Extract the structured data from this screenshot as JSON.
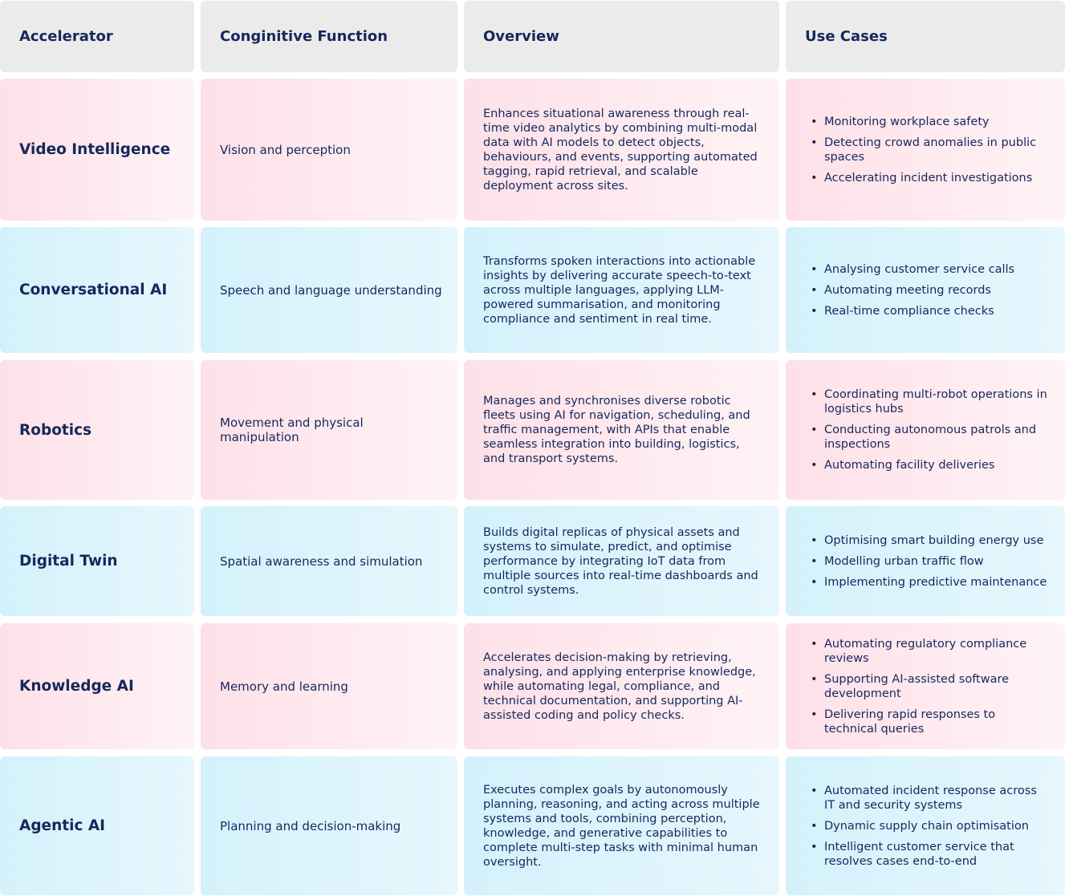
{
  "headers": {
    "accelerator": "Accelerator",
    "function": "Conginitive Function",
    "overview": "Overview",
    "use_cases": "Use Cases"
  },
  "rows": [
    {
      "accelerator": "Video Intelligence",
      "function": "Vision and perception",
      "overview": "Enhances situational awareness through real-time video analytics by combining multi-modal data with AI models to detect objects, behaviours, and events, supporting automated tagging, rapid retrieval, and scalable deployment across sites.",
      "use_cases": [
        "Monitoring workplace safety",
        "Detecting crowd anomalies in public spaces",
        "Accelerating incident investigations"
      ]
    },
    {
      "accelerator": "Conversational AI",
      "function": "Speech and language understanding",
      "overview": "Transforms spoken interactions into actionable insights by delivering accurate speech-to-text across multiple languages, applying LLM-powered summarisation, and monitoring compliance and sentiment in real time.",
      "use_cases": [
        "Analysing customer service calls",
        "Automating meeting records",
        "Real-time compliance checks"
      ]
    },
    {
      "accelerator": "Robotics",
      "function": "Movement and physical manipulation",
      "overview": "Manages and synchronises diverse robotic fleets using AI for navigation, scheduling, and traffic management, with APIs that enable seamless integration into building, logistics, and transport systems.",
      "use_cases": [
        "Coordinating multi-robot operations in logistics hubs",
        "Conducting autonomous patrols and inspections",
        "Automating facility deliveries"
      ]
    },
    {
      "accelerator": "Digital Twin",
      "function": "Spatial awareness and simulation",
      "overview": "Builds digital replicas of physical assets and systems to simulate, predict, and optimise performance by integrating IoT data from multiple sources into real-time dashboards and control systems.",
      "use_cases": [
        "Optimising smart building energy use",
        "Modelling urban traffic flow",
        "Implementing predictive maintenance"
      ]
    },
    {
      "accelerator": "Knowledge AI",
      "function": "Memory and learning",
      "overview": "Accelerates decision-making by retrieving, analysing, and applying enterprise knowledge, while automating legal, compliance, and technical documentation, and supporting AI-assisted coding and policy checks.",
      "use_cases": [
        "Automating regulatory compliance reviews",
        "Supporting AI-assisted software development",
        "Delivering rapid responses to technical queries"
      ]
    },
    {
      "accelerator": "Agentic AI",
      "function": "Planning and decision-making",
      "overview": "Executes complex goals by autonomously planning, reasoning, and acting across multiple systems and tools, combining perception, knowledge, and generative capabilities to complete multi-step tasks with minimal human oversight.",
      "use_cases": [
        "Automated incident response across IT and security systems",
        "Dynamic supply chain optimisation",
        "Intelligent customer service that resolves cases end-to-end"
      ]
    }
  ]
}
